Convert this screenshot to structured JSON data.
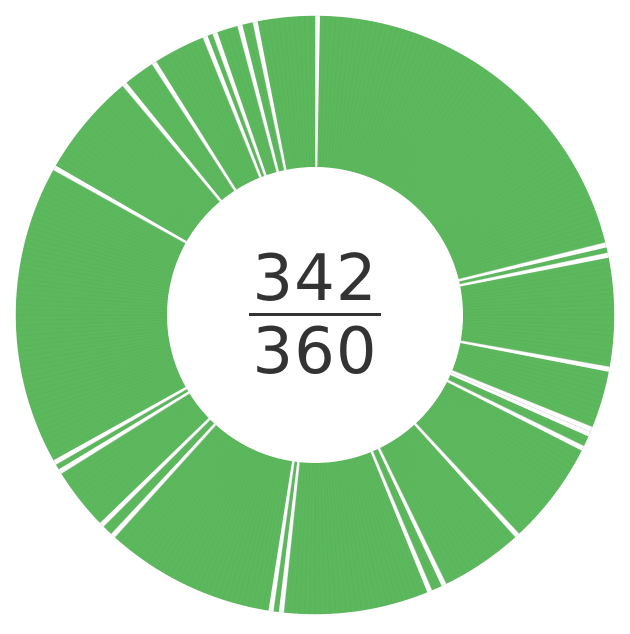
{
  "chart_data": {
    "type": "pie",
    "variant": "donut",
    "color": "#5cb85c",
    "gap_color": "#dddddd",
    "total": 360,
    "value": 342,
    "center_label": {
      "numerator": "342",
      "denominator": "360"
    },
    "gap_positions": [
      0,
      76,
      78,
      100,
      112,
      113,
      116,
      137,
      154,
      157,
      186,
      188,
      222,
      225,
      238,
      240,
      299,
      320,
      327,
      338,
      340,
      345,
      348
    ]
  }
}
